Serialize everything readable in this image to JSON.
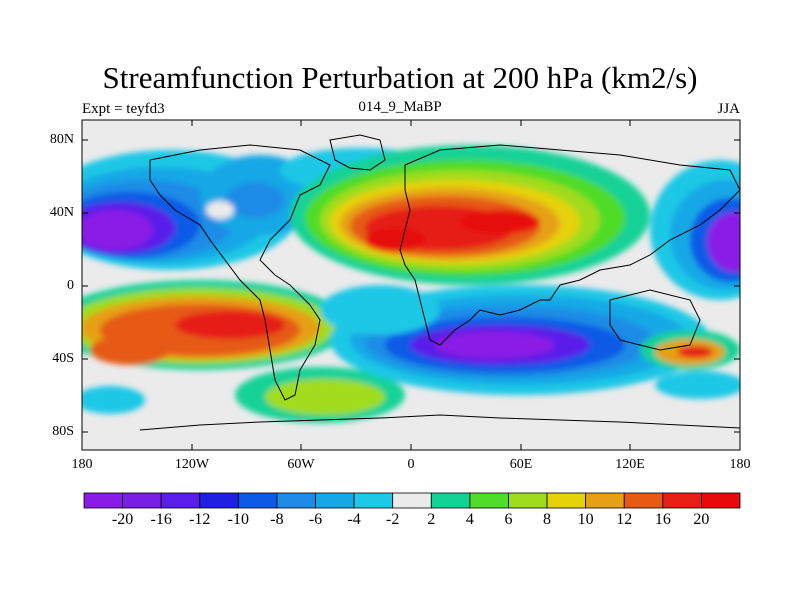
{
  "title": "Streamfunction Perturbation at 200 hPa (km2/s)",
  "left_string": "Expt = teyfd3",
  "center_string": "014_9_MaBP",
  "right_string": "JJA",
  "lat_labels": [
    "80N",
    "40N",
    "0",
    "40S",
    "80S"
  ],
  "lon_labels": [
    "180",
    "120W",
    "60W",
    "0",
    "60E",
    "120E",
    "180"
  ],
  "colorbar": {
    "labels": [
      "-20",
      "-16",
      "-12",
      "-10",
      "-8",
      "-6",
      "-4",
      "-2",
      "2",
      "4",
      "6",
      "8",
      "10",
      "12",
      "16",
      "20"
    ],
    "colors": [
      "#8a1ae6",
      "#7a1ee6",
      "#5a1ee8",
      "#2020e0",
      "#0a5ae6",
      "#1e8ce6",
      "#14a8e6",
      "#1ec8e6",
      "#ebebeb",
      "#12d296",
      "#50dc28",
      "#a0dc1e",
      "#e6d20a",
      "#e6a014",
      "#e65a14",
      "#e61e14",
      "#e60a0a"
    ]
  }
}
